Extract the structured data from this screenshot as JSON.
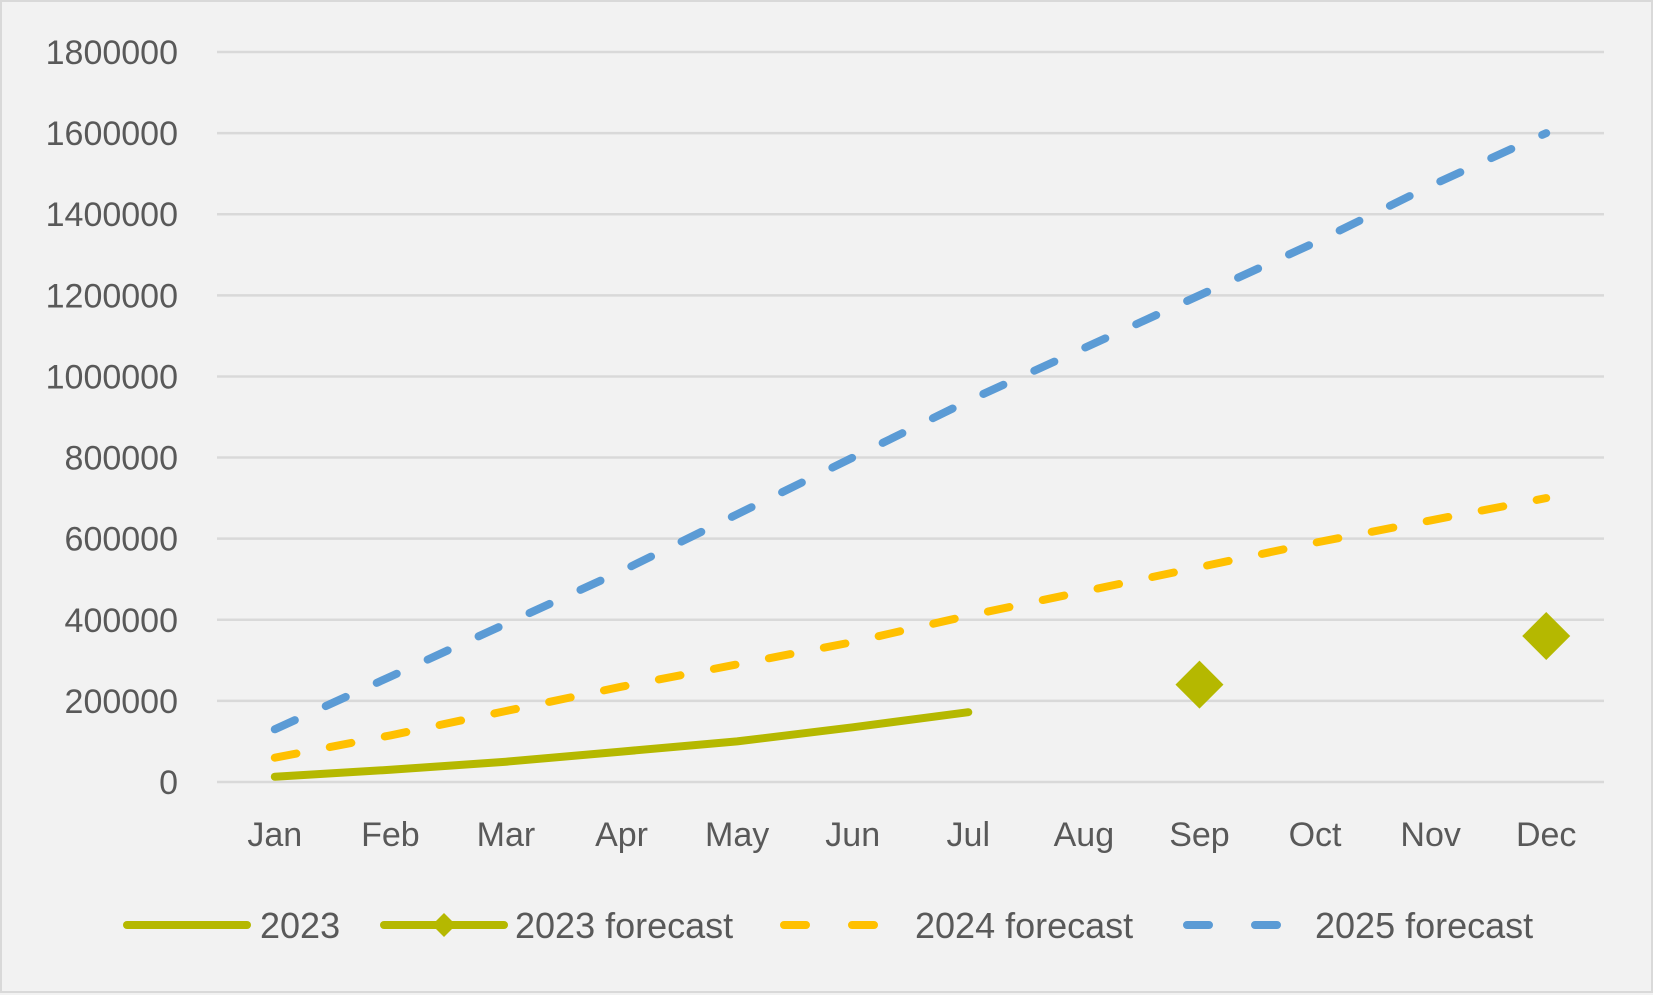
{
  "chart_data": {
    "type": "line",
    "categories": [
      "Jan",
      "Feb",
      "Mar",
      "Apr",
      "May",
      "Jun",
      "Jul",
      "Aug",
      "Sep",
      "Oct",
      "Nov",
      "Dec"
    ],
    "ylim": [
      0,
      1800000
    ],
    "yticks": [
      0,
      200000,
      400000,
      600000,
      800000,
      1000000,
      1200000,
      1400000,
      1600000,
      1800000
    ],
    "grid": true,
    "legend_position": "bottom",
    "series": [
      {
        "name": "2023",
        "style": "solid",
        "marker": "none",
        "color": "#b5b800",
        "values": [
          13000,
          30000,
          50000,
          75000,
          100000,
          135000,
          172000,
          null,
          null,
          null,
          null,
          null
        ]
      },
      {
        "name": "2023 forecast",
        "style": "solid",
        "marker": "diamond",
        "color": "#b5b800",
        "values": [
          null,
          null,
          null,
          null,
          null,
          null,
          null,
          null,
          240000,
          null,
          null,
          360000
        ]
      },
      {
        "name": "2024 forecast",
        "style": "dashed",
        "marker": "none",
        "color": "#ffc000",
        "values": [
          60000,
          115000,
          175000,
          235000,
          290000,
          345000,
          410000,
          470000,
          530000,
          590000,
          645000,
          700000
        ]
      },
      {
        "name": "2025 forecast",
        "style": "dashed",
        "marker": "none",
        "color": "#5b9bd5",
        "values": [
          130000,
          260000,
          390000,
          520000,
          660000,
          800000,
          940000,
          1070000,
          1200000,
          1330000,
          1470000,
          1600000
        ]
      }
    ]
  }
}
